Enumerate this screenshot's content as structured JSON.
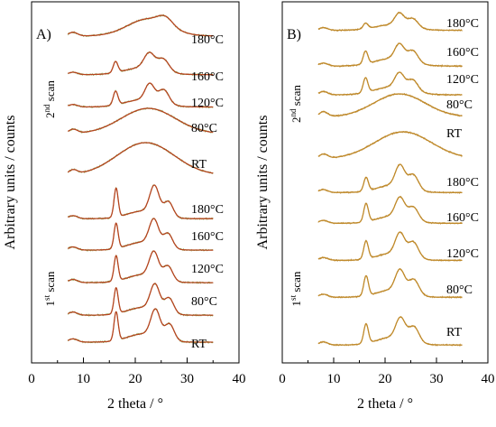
{
  "chart_data": [
    {
      "type": "line",
      "panel_label": "A)",
      "xlabel": "2 theta / °",
      "ylabel": "Arbitrary units / counts",
      "xlim": [
        0,
        40
      ],
      "xticks": [
        "0",
        "10",
        "20",
        "30",
        "40"
      ],
      "x_range": [
        7,
        35
      ],
      "line_color": "#b5441f",
      "noise_color": "#6a9a2a",
      "scan_labels": [
        {
          "pre": "2",
          "sup": "nd",
          "post": " scan"
        },
        {
          "pre": "1",
          "sup": "st",
          "post": " scan"
        }
      ],
      "series": [
        {
          "name": "180°C",
          "scan": 2,
          "peaks": [
            [
              22.5,
              0.55,
              4.0
            ],
            [
              25.8,
              0.25,
              1.4
            ]
          ],
          "baseline": 0.15
        },
        {
          "name": "160°C",
          "scan": 2,
          "peaks": [
            [
              16.2,
              0.55,
              0.45
            ],
            [
              22.7,
              0.75,
              1.0
            ],
            [
              25.4,
              0.6,
              1.1
            ],
            [
              21.5,
              0.35,
              3.5
            ]
          ],
          "baseline": 0.15
        },
        {
          "name": "120°C",
          "scan": 2,
          "peaks": [
            [
              16.2,
              0.65,
              0.45
            ],
            [
              22.8,
              0.8,
              0.9
            ],
            [
              25.5,
              0.65,
              1.0
            ],
            [
              21.5,
              0.35,
              3.5
            ]
          ],
          "baseline": 0.15
        },
        {
          "name": "80°C",
          "scan": 2,
          "peaks": [
            [
              22.5,
              0.75,
              5.2
            ]
          ],
          "baseline": 0.05
        },
        {
          "name": "RT",
          "scan": 2,
          "peaks": [
            [
              22.0,
              0.9,
              5.5
            ]
          ],
          "baseline": 0.05
        },
        {
          "name": "180°C",
          "scan": 1,
          "peaks": [
            [
              16.3,
              1.15,
              0.4
            ],
            [
              23.7,
              1.1,
              0.9
            ],
            [
              26.4,
              0.6,
              0.9
            ],
            [
              21.5,
              0.3,
              3.0
            ]
          ],
          "baseline": 0.1
        },
        {
          "name": "160°C",
          "scan": 1,
          "peaks": [
            [
              16.3,
              0.95,
              0.4
            ],
            [
              23.6,
              0.95,
              0.9
            ],
            [
              26.3,
              0.55,
              0.9
            ],
            [
              21.5,
              0.3,
              3.0
            ]
          ],
          "baseline": 0.1
        },
        {
          "name": "120°C",
          "scan": 1,
          "peaks": [
            [
              16.3,
              0.95,
              0.4
            ],
            [
              23.6,
              0.95,
              0.9
            ],
            [
              26.3,
              0.55,
              0.9
            ],
            [
              21.5,
              0.3,
              3.0
            ]
          ],
          "baseline": 0.1
        },
        {
          "name": "80°C",
          "scan": 1,
          "peaks": [
            [
              16.3,
              1.0,
              0.4
            ],
            [
              23.8,
              1.0,
              0.9
            ],
            [
              26.5,
              0.6,
              0.9
            ],
            [
              21.5,
              0.3,
              3.0
            ]
          ],
          "baseline": 0.1
        },
        {
          "name": "RT",
          "scan": 1,
          "peaks": [
            [
              16.3,
              1.05,
              0.4
            ],
            [
              23.9,
              1.0,
              0.9
            ],
            [
              26.6,
              0.6,
              0.9
            ],
            [
              21.5,
              0.3,
              3.0
            ]
          ],
          "baseline": 0.1
        }
      ]
    },
    {
      "type": "line",
      "panel_label": "B)",
      "xlabel": "2 theta / °",
      "ylabel": "Arbitrary units / counts",
      "xlim": [
        0,
        40
      ],
      "xticks": [
        "0",
        "10",
        "20",
        "30",
        "40"
      ],
      "x_range": [
        7,
        35
      ],
      "line_color": "#c08a2a",
      "noise_color": "#b07a20",
      "scan_labels": [
        {
          "pre": "2",
          "sup": "nd",
          "post": " scan"
        },
        {
          "pre": "1",
          "sup": "st",
          "post": " scan"
        }
      ],
      "series": [
        {
          "name": "180°C",
          "scan": 2,
          "peaks": [
            [
              16.2,
              0.25,
              0.45
            ],
            [
              22.8,
              0.55,
              0.9
            ],
            [
              25.4,
              0.4,
              1.0
            ],
            [
              21.5,
              0.25,
              3.5
            ]
          ],
          "baseline": 0.1
        },
        {
          "name": "160°C",
          "scan": 2,
          "peaks": [
            [
              16.2,
              0.5,
              0.45
            ],
            [
              22.8,
              0.6,
              0.9
            ],
            [
              25.4,
              0.45,
              1.0
            ],
            [
              21.5,
              0.3,
              3.5
            ]
          ],
          "baseline": 0.1
        },
        {
          "name": "120°C",
          "scan": 2,
          "peaks": [
            [
              16.2,
              0.55,
              0.45
            ],
            [
              22.8,
              0.55,
              0.9
            ],
            [
              25.4,
              0.4,
              1.0
            ],
            [
              21.5,
              0.3,
              3.5
            ]
          ],
          "baseline": 0.1
        },
        {
          "name": "80°C",
          "scan": 2,
          "peaks": [
            [
              22.8,
              0.55,
              5.0
            ]
          ],
          "baseline": 0.05
        },
        {
          "name": "RT",
          "scan": 2,
          "peaks": [
            [
              23.5,
              0.75,
              5.5
            ]
          ],
          "baseline": 0.05
        },
        {
          "name": "180°C",
          "scan": 1,
          "peaks": [
            [
              16.3,
              0.55,
              0.45
            ],
            [
              22.9,
              0.85,
              0.9
            ],
            [
              25.5,
              0.6,
              1.0
            ],
            [
              21.5,
              0.3,
              3.0
            ]
          ],
          "baseline": 0.1
        },
        {
          "name": "160°C",
          "scan": 1,
          "peaks": [
            [
              16.3,
              0.75,
              0.45
            ],
            [
              22.9,
              0.8,
              0.9
            ],
            [
              25.5,
              0.55,
              1.0
            ],
            [
              21.5,
              0.3,
              3.0
            ]
          ],
          "baseline": 0.1
        },
        {
          "name": "120°C",
          "scan": 1,
          "peaks": [
            [
              16.3,
              0.75,
              0.45
            ],
            [
              22.9,
              0.9,
              0.9
            ],
            [
              25.5,
              0.65,
              1.0
            ],
            [
              21.5,
              0.3,
              3.0
            ]
          ],
          "baseline": 0.1
        },
        {
          "name": "80°C",
          "scan": 1,
          "peaks": [
            [
              16.3,
              0.8,
              0.45
            ],
            [
              22.9,
              0.85,
              0.9
            ],
            [
              25.6,
              0.6,
              1.0
            ],
            [
              21.5,
              0.3,
              3.0
            ]
          ],
          "baseline": 0.1
        },
        {
          "name": "RT",
          "scan": 1,
          "peaks": [
            [
              16.3,
              0.75,
              0.45
            ],
            [
              23.0,
              0.8,
              0.9
            ],
            [
              25.6,
              0.6,
              1.0
            ],
            [
              21.5,
              0.3,
              3.0
            ]
          ],
          "baseline": 0.1
        }
      ]
    }
  ]
}
